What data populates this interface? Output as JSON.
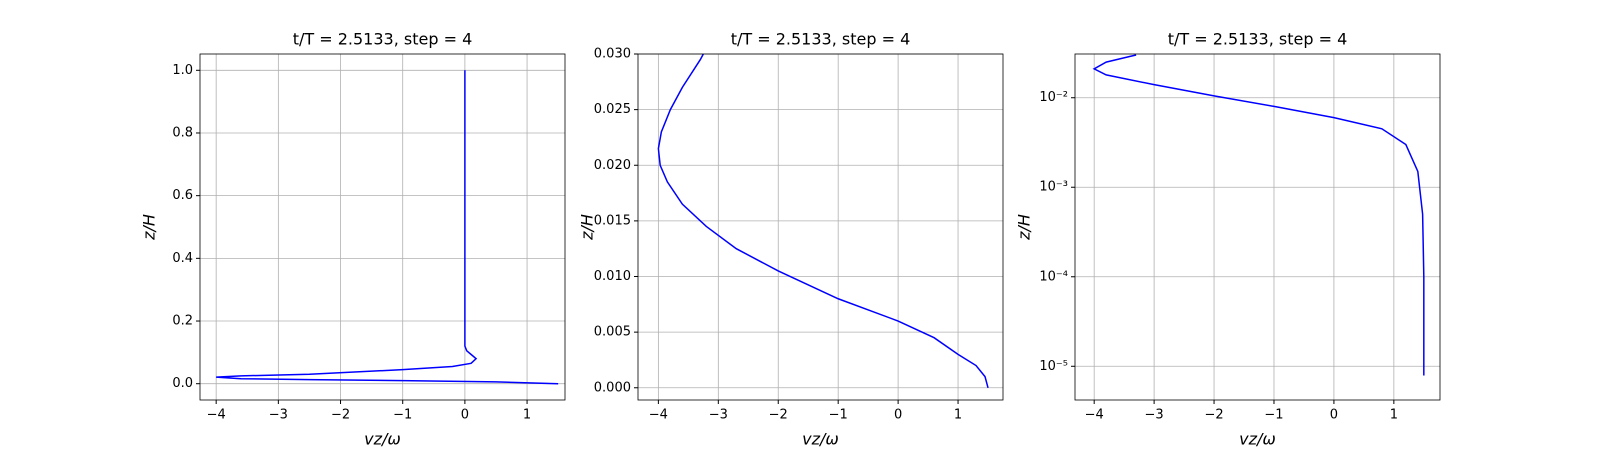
{
  "chart_data": [
    {
      "type": "line",
      "title": "t/T = 2.5133, step = 4",
      "x_label": "vz/ω",
      "y_label": "z/H",
      "xlim": [
        -4.26,
        1.61
      ],
      "ylim": [
        -0.052,
        1.052
      ],
      "yscale": "linear",
      "grid": true,
      "xticks": [
        {
          "value": -4,
          "label": "−4"
        },
        {
          "value": -3,
          "label": "−3"
        },
        {
          "value": -2,
          "label": "−2"
        },
        {
          "value": -1,
          "label": "−1"
        },
        0,
        1
      ],
      "yticks": [
        {
          "value": 0,
          "label": "0.0"
        },
        {
          "value": 0.2,
          "label": "0.2"
        },
        {
          "value": 0.4,
          "label": "0.4"
        },
        {
          "value": 0.6,
          "label": "0.6"
        },
        {
          "value": 0.8,
          "label": "0.8"
        },
        {
          "value": 1,
          "label": "1.0"
        }
      ],
      "x": [
        1.5,
        1.3,
        0.5,
        -1,
        -2.5,
        -3.6,
        -4.0,
        -3.6,
        -2.5,
        -1,
        -0.2,
        0.1,
        0.18,
        0.12,
        0.03,
        0.0,
        0.0,
        0.0
      ],
      "series": [
        {
          "color": "#0000ff",
          "values": [
            0,
            0.001,
            0.006,
            0.01,
            0.013,
            0.016,
            0.021,
            0.025,
            0.03,
            0.045,
            0.055,
            0.065,
            0.08,
            0.09,
            0.105,
            0.12,
            0.5,
            1.0
          ]
        }
      ]
    },
    {
      "type": "line",
      "title": "t/T = 2.5133, step = 4",
      "x_label": "vz/ω",
      "y_label": "z/H",
      "xlim": [
        -4.34,
        1.75
      ],
      "ylim": [
        -0.0011,
        0.03
      ],
      "yscale": "linear",
      "grid": true,
      "xticks": [
        {
          "value": -4,
          "label": "−4"
        },
        {
          "value": -3,
          "label": "−3"
        },
        {
          "value": -2,
          "label": "−2"
        },
        {
          "value": -1,
          "label": "−1"
        },
        0,
        1
      ],
      "yticks": [
        {
          "value": 0,
          "label": "0.000"
        },
        {
          "value": 0.005,
          "label": "0.005"
        },
        {
          "value": 0.01,
          "label": "0.010"
        },
        {
          "value": 0.015,
          "label": "0.015"
        },
        {
          "value": 0.02,
          "label": "0.020"
        },
        {
          "value": 0.025,
          "label": "0.025"
        },
        {
          "value": 0.03,
          "label": "0.030"
        }
      ],
      "x": [
        1.5,
        1.45,
        1.3,
        1.0,
        0.6,
        0,
        -1,
        -2,
        -2.7,
        -3.2,
        -3.6,
        -3.85,
        -3.97,
        -4.0,
        -3.95,
        -3.8,
        -3.6,
        -3.3,
        -3.25
      ],
      "series": [
        {
          "color": "#0000ff",
          "values": [
            0,
            0.001,
            0.002,
            0.003,
            0.0045,
            0.006,
            0.008,
            0.0105,
            0.0125,
            0.0145,
            0.0165,
            0.0185,
            0.02,
            0.0215,
            0.023,
            0.025,
            0.027,
            0.0295,
            0.03
          ]
        }
      ]
    },
    {
      "type": "line",
      "title": "t/T = 2.5133, step = 4",
      "x_label": "vz/ω",
      "y_label": "z/H",
      "xlim": [
        -4.32,
        1.77
      ],
      "ylim": [
        4.2e-06,
        0.0308
      ],
      "yscale": "log",
      "grid": true,
      "xticks": [
        {
          "value": -4,
          "label": "−4"
        },
        {
          "value": -3,
          "label": "−3"
        },
        {
          "value": -2,
          "label": "−2"
        },
        {
          "value": -1,
          "label": "−1"
        },
        0,
        1
      ],
      "yticks": [
        {
          "value": 1e-05,
          "label": "10⁻⁵"
        },
        {
          "value": 0.0001,
          "label": "10⁻⁴"
        },
        {
          "value": 0.001,
          "label": "10⁻³"
        },
        {
          "value": 0.01,
          "label": "10⁻²"
        }
      ],
      "x": [
        1.5,
        1.5,
        1.5,
        1.48,
        1.4,
        1.2,
        0.8,
        0,
        -1,
        -2,
        -3,
        -3.8,
        -4.0,
        -3.8,
        -3.4,
        -3.3
      ],
      "series": [
        {
          "color": "#0000ff",
          "values": [
            7.9e-06,
            1e-05,
            0.0001,
            0.0005,
            0.0015,
            0.003,
            0.0045,
            0.006,
            0.008,
            0.0105,
            0.014,
            0.018,
            0.021,
            0.025,
            0.029,
            0.03
          ]
        }
      ]
    }
  ]
}
